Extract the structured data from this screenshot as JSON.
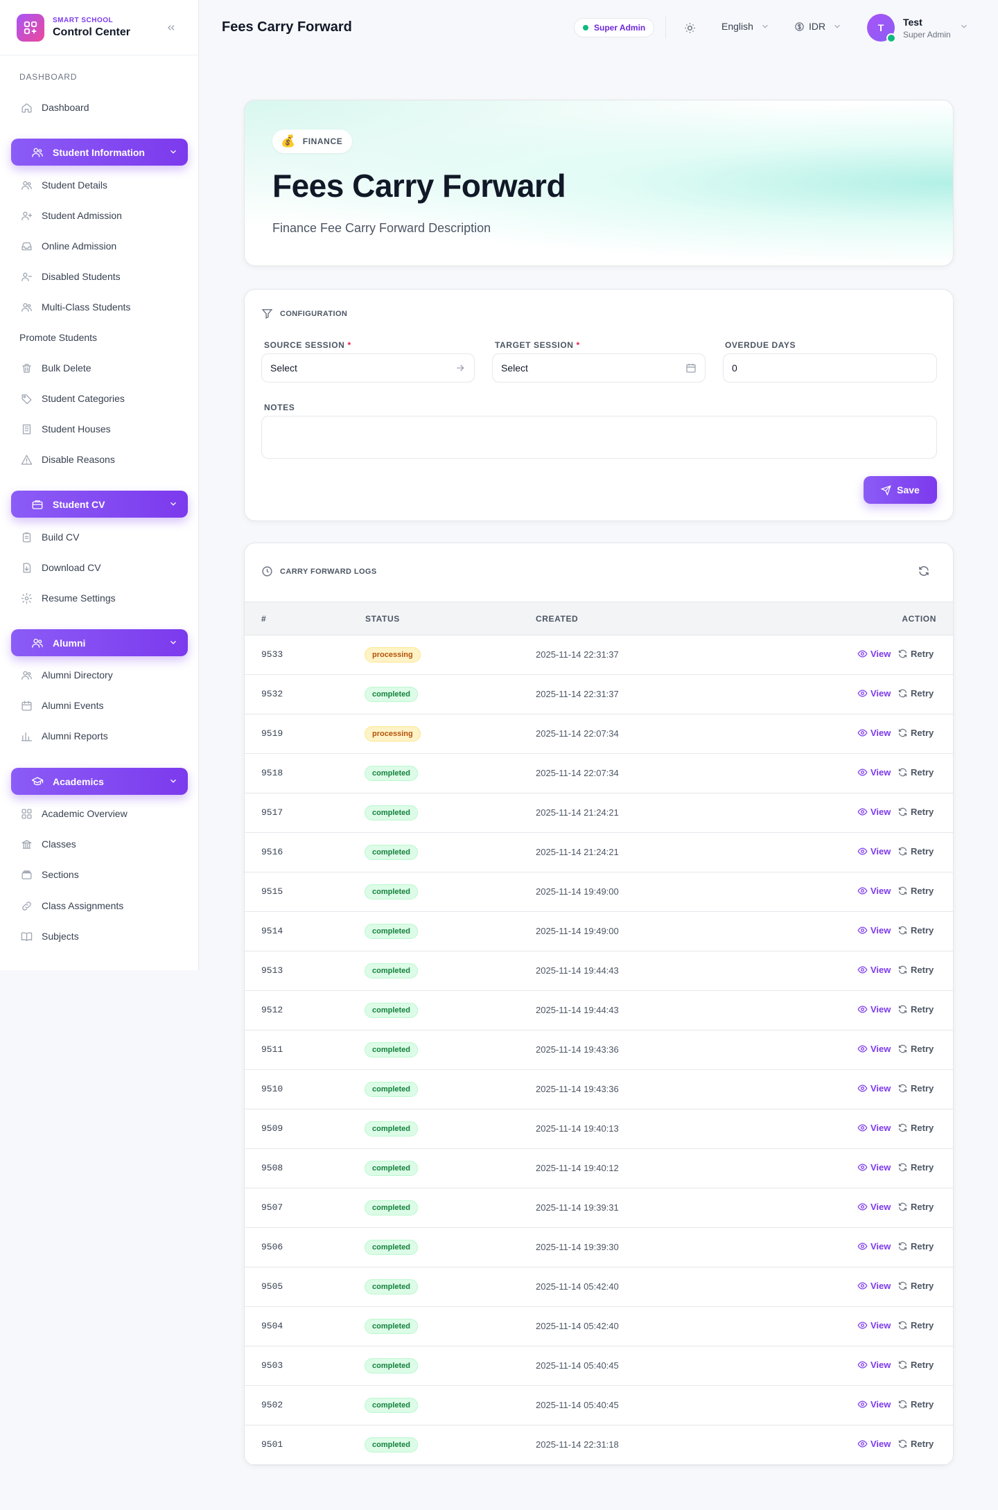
{
  "brand": {
    "subtitle": "SMART SCHOOL",
    "title": "Control Center"
  },
  "sidebar": {
    "section_label": "DASHBOARD",
    "items": [
      {
        "type": "item",
        "label": "Dashboard",
        "icon": "home-icon"
      },
      {
        "type": "group",
        "label": "Student Information",
        "icon": "users-icon"
      },
      {
        "type": "item",
        "label": "Student Details",
        "icon": "users-icon"
      },
      {
        "type": "item",
        "label": "Student Admission",
        "icon": "user-plus-icon"
      },
      {
        "type": "item",
        "label": "Online Admission",
        "icon": "inbox-icon"
      },
      {
        "type": "item",
        "label": "Disabled Students",
        "icon": "user-minus-icon"
      },
      {
        "type": "item",
        "label": "Multi-Class Students",
        "icon": "users-icon"
      },
      {
        "type": "item",
        "label": "Promote Students",
        "icon": ""
      },
      {
        "type": "item",
        "label": "Bulk Delete",
        "icon": "trash-icon"
      },
      {
        "type": "item",
        "label": "Student Categories",
        "icon": "tag-icon"
      },
      {
        "type": "item",
        "label": "Student Houses",
        "icon": "building-icon"
      },
      {
        "type": "item",
        "label": "Disable Reasons",
        "icon": "warning-icon"
      },
      {
        "type": "group",
        "label": "Student CV",
        "icon": "briefcase-icon"
      },
      {
        "type": "item",
        "label": "Build CV",
        "icon": "clipboard-icon"
      },
      {
        "type": "item",
        "label": "Download CV",
        "icon": "file-download-icon"
      },
      {
        "type": "item",
        "label": "Resume Settings",
        "icon": "gear-icon"
      },
      {
        "type": "group",
        "label": "Alumni",
        "icon": "users-icon"
      },
      {
        "type": "item",
        "label": "Alumni Directory",
        "icon": "users-icon"
      },
      {
        "type": "item",
        "label": "Alumni Events",
        "icon": "calendar-icon"
      },
      {
        "type": "item",
        "label": "Alumni Reports",
        "icon": "bar-chart-icon"
      },
      {
        "type": "group",
        "label": "Academics",
        "icon": "graduation-cap-icon"
      },
      {
        "type": "item",
        "label": "Academic Overview",
        "icon": "grid-icon"
      },
      {
        "type": "item",
        "label": "Classes",
        "icon": "bank-icon"
      },
      {
        "type": "item",
        "label": "Sections",
        "icon": "layers-icon"
      },
      {
        "type": "item",
        "label": "Class Assignments",
        "icon": "link-icon"
      },
      {
        "type": "item",
        "label": "Subjects",
        "icon": "book-icon"
      }
    ]
  },
  "header": {
    "title": "Fees Carry Forward",
    "role_badge": "Super Admin",
    "language": "English",
    "currency": "IDR",
    "user": {
      "initial": "T",
      "name": "Test",
      "role": "Super Admin"
    }
  },
  "hero": {
    "chip_emoji": "💰",
    "chip_label": "FINANCE",
    "title": "Fees Carry Forward",
    "description": "Finance Fee Carry Forward Description"
  },
  "config": {
    "heading": "CONFIGURATION",
    "source_session": {
      "label": "SOURCE SESSION",
      "required": "*",
      "value": "Select"
    },
    "target_session": {
      "label": "TARGET SESSION",
      "required": "*",
      "value": "Select"
    },
    "overdue_days": {
      "label": "OVERDUE DAYS",
      "value": "0"
    },
    "notes": {
      "label": "NOTES",
      "value": ""
    },
    "save_label": "Save"
  },
  "logs": {
    "heading": "CARRY FORWARD LOGS",
    "columns": {
      "id": "#",
      "status": "STATUS",
      "created": "CREATED",
      "action": "ACTION"
    },
    "view_label": "View",
    "retry_label": "Retry",
    "rows": [
      {
        "id": "9533",
        "status": "processing",
        "created": "2025-11-14 22:31:37"
      },
      {
        "id": "9532",
        "status": "completed",
        "created": "2025-11-14 22:31:37"
      },
      {
        "id": "9519",
        "status": "processing",
        "created": "2025-11-14 22:07:34"
      },
      {
        "id": "9518",
        "status": "completed",
        "created": "2025-11-14 22:07:34"
      },
      {
        "id": "9517",
        "status": "completed",
        "created": "2025-11-14 21:24:21"
      },
      {
        "id": "9516",
        "status": "completed",
        "created": "2025-11-14 21:24:21"
      },
      {
        "id": "9515",
        "status": "completed",
        "created": "2025-11-14 19:49:00"
      },
      {
        "id": "9514",
        "status": "completed",
        "created": "2025-11-14 19:49:00"
      },
      {
        "id": "9513",
        "status": "completed",
        "created": "2025-11-14 19:44:43"
      },
      {
        "id": "9512",
        "status": "completed",
        "created": "2025-11-14 19:44:43"
      },
      {
        "id": "9511",
        "status": "completed",
        "created": "2025-11-14 19:43:36"
      },
      {
        "id": "9510",
        "status": "completed",
        "created": "2025-11-14 19:43:36"
      },
      {
        "id": "9509",
        "status": "completed",
        "created": "2025-11-14 19:40:13"
      },
      {
        "id": "9508",
        "status": "completed",
        "created": "2025-11-14 19:40:12"
      },
      {
        "id": "9507",
        "status": "completed",
        "created": "2025-11-14 19:39:31"
      },
      {
        "id": "9506",
        "status": "completed",
        "created": "2025-11-14 19:39:30"
      },
      {
        "id": "9505",
        "status": "completed",
        "created": "2025-11-14 05:42:40"
      },
      {
        "id": "9504",
        "status": "completed",
        "created": "2025-11-14 05:42:40"
      },
      {
        "id": "9503",
        "status": "completed",
        "created": "2025-11-14 05:40:45"
      },
      {
        "id": "9502",
        "status": "completed",
        "created": "2025-11-14 05:40:45"
      },
      {
        "id": "9501",
        "status": "completed",
        "created": "2025-11-14 22:31:18"
      }
    ]
  },
  "colors": {
    "accent": "#7c3aed",
    "processing": "#b45309",
    "completed": "#15803d",
    "online": "#10b981"
  }
}
